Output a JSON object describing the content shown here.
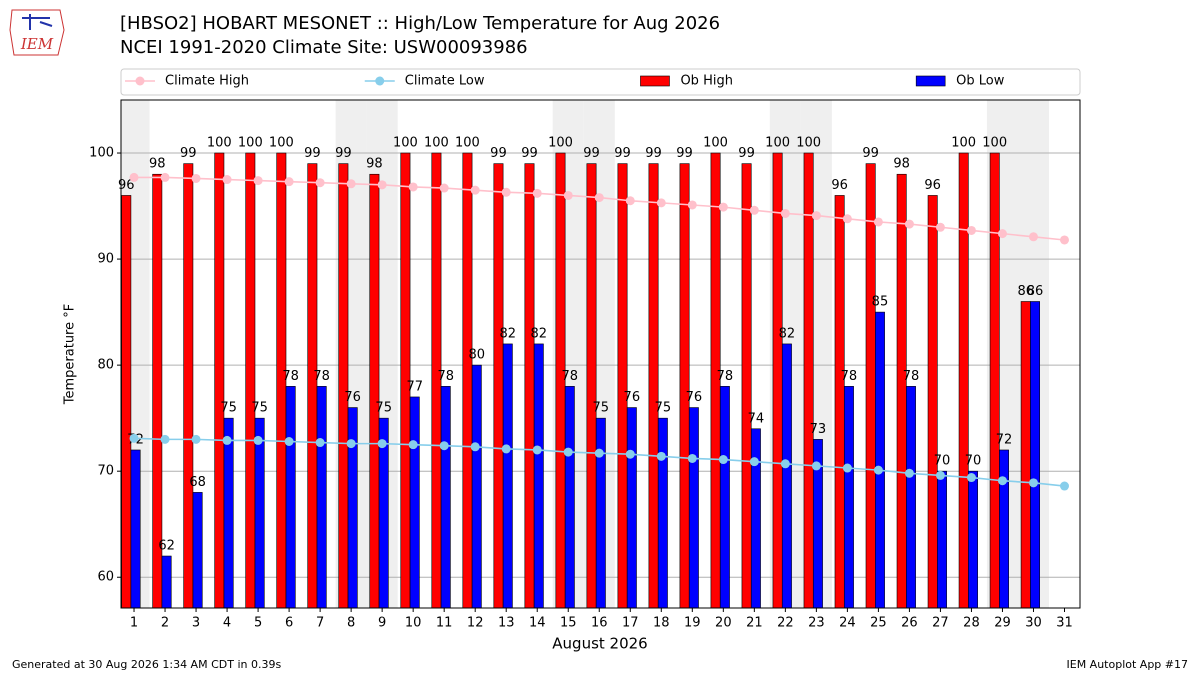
{
  "chart_data": {
    "type": "bar",
    "title": "[HBSO2] HOBART MESONET :: High/Low Temperature for Aug 2026",
    "subtitle": "NCEI 1991-2020 Climate Site: USW00093986",
    "logo": "IEM",
    "x_label": "August 2026",
    "y_label": "Temperature °F",
    "footer_left": "Generated at 30 Aug 2026 1:34 AM CDT in 0.39s",
    "footer_right": "IEM Autoplot App #17",
    "x": [
      1,
      2,
      3,
      4,
      5,
      6,
      7,
      8,
      9,
      10,
      11,
      12,
      13,
      14,
      15,
      16,
      17,
      18,
      19,
      20,
      21,
      22,
      23,
      24,
      25,
      26,
      27,
      28,
      29,
      30,
      31
    ],
    "xlim": [
      0.58,
      31.5
    ],
    "ylim": [
      57.1,
      105
    ],
    "yticks": [
      60,
      70,
      80,
      90,
      100
    ],
    "grid": true,
    "weekend_days": [
      1,
      8,
      9,
      15,
      16,
      22,
      23,
      29,
      30
    ],
    "weekend_color": "#efefef",
    "legend": "top",
    "series": [
      {
        "name": "Climate High",
        "type": "line",
        "color": "pink",
        "values": [
          97.7,
          97.7,
          97.6,
          97.5,
          97.4,
          97.3,
          97.2,
          97.1,
          97.0,
          96.8,
          96.7,
          96.5,
          96.3,
          96.2,
          96.0,
          95.8,
          95.5,
          95.3,
          95.1,
          94.9,
          94.6,
          94.3,
          94.1,
          93.8,
          93.5,
          93.3,
          93.0,
          92.7,
          92.4,
          92.1,
          91.8
        ]
      },
      {
        "name": "Climate Low",
        "type": "line",
        "color": "skyblue",
        "values": [
          73.1,
          73.0,
          73.0,
          72.9,
          72.9,
          72.8,
          72.7,
          72.6,
          72.6,
          72.5,
          72.4,
          72.3,
          72.1,
          72.0,
          71.8,
          71.7,
          71.6,
          71.4,
          71.2,
          71.1,
          70.9,
          70.7,
          70.5,
          70.3,
          70.1,
          69.8,
          69.6,
          69.4,
          69.1,
          68.9,
          68.6
        ]
      },
      {
        "name": "Ob High",
        "type": "bar",
        "color": "red",
        "values": [
          96,
          98,
          99,
          100,
          100,
          100,
          99,
          99,
          98,
          100,
          100,
          100,
          99,
          99,
          100,
          99,
          99,
          99,
          99,
          100,
          99,
          100,
          100,
          96,
          99,
          98,
          96,
          100,
          100,
          86,
          null
        ]
      },
      {
        "name": "Ob Low",
        "type": "bar",
        "color": "blue",
        "values": [
          72,
          62,
          68,
          75,
          75,
          78,
          78,
          76,
          75,
          77,
          78,
          80,
          82,
          82,
          78,
          75,
          76,
          75,
          76,
          78,
          74,
          82,
          73,
          78,
          85,
          78,
          70,
          70,
          72,
          86,
          null
        ]
      }
    ]
  }
}
